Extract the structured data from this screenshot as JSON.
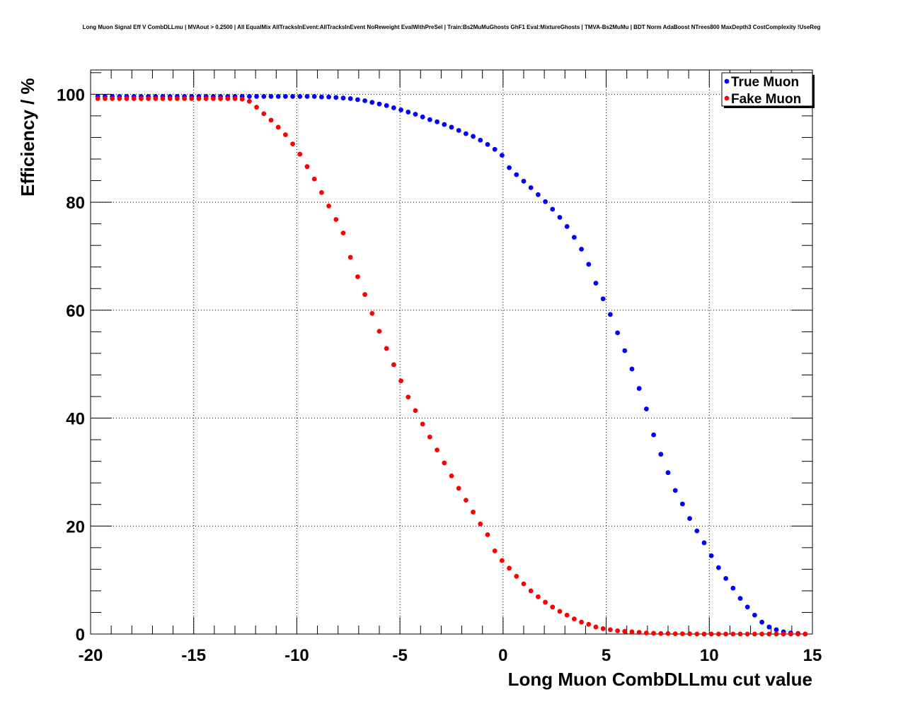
{
  "title": "Long Muon Signal Eff V CombDLLmu | MVAout > 0.2500 | All EqualMix AllTracksInEvent:AllTracksInEvent NoReweight EvalWithPreSel | Train:Bs2MuMuGhosts GhF1 Eval:MixtureGhosts | TMVA-Bs2MuMu | BDT Norm AdaBoost NTrees800 MaxDepth3 CostComplexity !UseReg",
  "legend": {
    "placement": "top-right"
  },
  "colors": {
    "true_muon": "#0000ff",
    "fake_muon": "#ff0000",
    "grid": "#000000"
  },
  "chart_data": {
    "type": "scatter",
    "title": "Long Muon Signal Eff V CombDLLmu | MVAout > 0.2500 | All EqualMix AllTracksInEvent:AllTracksInEvent NoReweight EvalWithPreSel | Train:Bs2MuMuGhosts GhF1 Eval:MixtureGhosts | TMVA-Bs2MuMu | BDT Norm AdaBoost NTrees800 MaxDepth3 CostComplexity !UseReg",
    "xlabel": "Long Muon CombDLLmu cut value",
    "ylabel": "Efficiency / %",
    "xlim": [
      -20,
      15
    ],
    "ylim": [
      0,
      104.5
    ],
    "xticks": [
      -20,
      -15,
      -10,
      -5,
      0,
      5,
      10,
      15
    ],
    "yticks": [
      0,
      20,
      40,
      60,
      80,
      100
    ],
    "xtick_labels": [
      "-20",
      "-15",
      "-10",
      "-5",
      "0",
      "5",
      "10",
      "15"
    ],
    "ytick_labels": [
      "0",
      "20",
      "40",
      "60",
      "80",
      "100"
    ],
    "grid": true,
    "x": [
      -19.65,
      -19.3,
      -18.95,
      -18.6,
      -18.25,
      -17.9,
      -17.55,
      -17.2,
      -16.85,
      -16.5,
      -16.15,
      -15.8,
      -15.45,
      -15.1,
      -14.75,
      -14.4,
      -14.05,
      -13.7,
      -13.35,
      -13.0,
      -12.65,
      -12.3,
      -11.95,
      -11.6,
      -11.25,
      -10.9,
      -10.55,
      -10.2,
      -9.85,
      -9.5,
      -9.15,
      -8.8,
      -8.45,
      -8.1,
      -7.75,
      -7.4,
      -7.05,
      -6.7,
      -6.35,
      -6.0,
      -5.65,
      -5.3,
      -4.95,
      -4.6,
      -4.25,
      -3.9,
      -3.55,
      -3.2,
      -2.85,
      -2.5,
      -2.15,
      -1.8,
      -1.45,
      -1.1,
      -0.75,
      -0.4,
      -0.05,
      0.3,
      0.65,
      1.0,
      1.35,
      1.7,
      2.05,
      2.4,
      2.75,
      3.1,
      3.45,
      3.8,
      4.15,
      4.5,
      4.85,
      5.2,
      5.55,
      5.9,
      6.25,
      6.6,
      6.95,
      7.3,
      7.65,
      8.0,
      8.35,
      8.7,
      9.05,
      9.4,
      9.75,
      10.1,
      10.45,
      10.8,
      11.15,
      11.5,
      11.85,
      12.2,
      12.55,
      12.9,
      13.25,
      13.6,
      13.95,
      14.3,
      14.65
    ],
    "series": [
      {
        "name": "True Muon",
        "color": "#0000ff",
        "values": [
          99.6,
          99.6,
          99.6,
          99.6,
          99.6,
          99.6,
          99.6,
          99.6,
          99.6,
          99.6,
          99.6,
          99.6,
          99.6,
          99.6,
          99.6,
          99.6,
          99.6,
          99.6,
          99.6,
          99.6,
          99.6,
          99.6,
          99.6,
          99.6,
          99.6,
          99.6,
          99.6,
          99.6,
          99.6,
          99.6,
          99.6,
          99.5,
          99.5,
          99.4,
          99.3,
          99.2,
          99.0,
          98.8,
          98.5,
          98.2,
          97.9,
          97.5,
          97.1,
          96.7,
          96.3,
          95.8,
          95.3,
          94.9,
          94.4,
          93.9,
          93.3,
          92.7,
          92.2,
          91.5,
          90.7,
          89.8,
          88.7,
          86.4,
          85.1,
          83.9,
          82.7,
          81.4,
          80.1,
          78.7,
          77.2,
          75.5,
          73.5,
          71.3,
          68.5,
          65.0,
          62.1,
          59.2,
          55.8,
          52.5,
          49.1,
          45.5,
          41.7,
          36.9,
          33.3,
          29.9,
          26.6,
          24.1,
          21.4,
          19.1,
          16.9,
          14.5,
          12.3,
          10.3,
          8.5,
          6.6,
          5.0,
          3.5,
          2.2,
          1.3,
          0.8,
          0.4,
          0.2,
          0.1,
          0.0
        ]
      },
      {
        "name": "Fake Muon",
        "color": "#ff0000",
        "values": [
          99.2,
          99.2,
          99.2,
          99.2,
          99.2,
          99.2,
          99.2,
          99.2,
          99.2,
          99.2,
          99.2,
          99.2,
          99.2,
          99.2,
          99.2,
          99.2,
          99.2,
          99.2,
          99.2,
          99.2,
          99.1,
          98.7,
          97.6,
          96.4,
          95.2,
          93.9,
          92.5,
          90.8,
          88.9,
          86.6,
          84.3,
          81.8,
          79.3,
          76.8,
          74.3,
          69.8,
          66.2,
          62.9,
          59.4,
          56.1,
          52.9,
          49.9,
          46.9,
          43.9,
          41.4,
          38.9,
          36.5,
          34.1,
          31.7,
          29.3,
          27.0,
          24.8,
          22.6,
          20.4,
          18.4,
          15.4,
          13.6,
          12.2,
          10.7,
          9.3,
          8.0,
          6.9,
          5.9,
          5.0,
          4.2,
          3.5,
          2.8,
          2.2,
          1.8,
          1.3,
          1.0,
          0.8,
          0.6,
          0.5,
          0.4,
          0.3,
          0.2,
          0.15,
          0.1,
          0.1,
          0.05,
          0.05,
          0.05,
          0.0,
          0.0,
          0.0,
          0.0,
          0.0,
          0.0,
          0.0,
          0.0,
          0.0,
          0.0,
          0.0,
          0.0,
          0.0,
          0.0,
          0.0,
          0.0
        ]
      }
    ]
  }
}
